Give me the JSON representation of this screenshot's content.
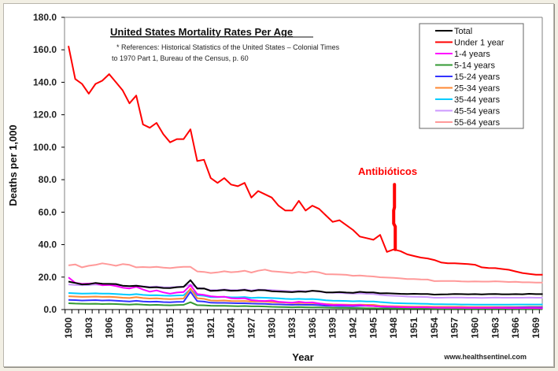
{
  "chart_data": {
    "type": "line",
    "title": "United States Mortality Rates Per Age",
    "reference_note": [
      "* References: Historical Statistics of the United States – Colonial Times",
      "to 1970 Part 1, Bureau of the Census, p. 60"
    ],
    "xlabel": "Year",
    "ylabel": "Deaths per 1,000",
    "ylim": [
      0,
      180
    ],
    "yticks": [
      "0.0",
      "20.0",
      "40.0",
      "60.0",
      "80.0",
      "100.0",
      "120.0",
      "140.0",
      "160.0",
      "180.0"
    ],
    "ytick_values": [
      0,
      20,
      40,
      60,
      80,
      100,
      120,
      140,
      160,
      180
    ],
    "xlim": [
      1900,
      1970
    ],
    "xtick_labels": [
      "1900",
      "1903",
      "1906",
      "1909",
      "1912",
      "1915",
      "1918",
      "1921",
      "1924",
      "1927",
      "1930",
      "1933",
      "1936",
      "1939",
      "1942",
      "1945",
      "1948",
      "1951",
      "1954",
      "1957",
      "1960",
      "1963",
      "1966",
      "1969"
    ],
    "grid": false,
    "legend_position": "top-right",
    "x": [
      1900,
      1901,
      1902,
      1903,
      1904,
      1905,
      1906,
      1907,
      1908,
      1909,
      1910,
      1911,
      1912,
      1913,
      1914,
      1915,
      1916,
      1917,
      1918,
      1919,
      1920,
      1921,
      1922,
      1923,
      1924,
      1925,
      1926,
      1927,
      1928,
      1929,
      1930,
      1931,
      1932,
      1933,
      1934,
      1935,
      1936,
      1937,
      1938,
      1939,
      1940,
      1941,
      1942,
      1943,
      1944,
      1945,
      1946,
      1947,
      1948,
      1949,
      1950,
      1951,
      1952,
      1953,
      1954,
      1955,
      1956,
      1957,
      1958,
      1959,
      1960,
      1961,
      1962,
      1963,
      1964,
      1965,
      1966,
      1967,
      1968,
      1969,
      1970
    ],
    "series": [
      {
        "name": "Total",
        "color": "#000000",
        "values": [
          17.2,
          16.4,
          15.5,
          15.6,
          16.4,
          15.9,
          15.8,
          15.7,
          14.7,
          14.4,
          14.7,
          14.1,
          13.6,
          13.8,
          13.3,
          13.2,
          13.8,
          14.0,
          18.1,
          12.9,
          13.0,
          11.5,
          11.7,
          12.1,
          11.6,
          11.7,
          12.1,
          11.3,
          12.0,
          11.9,
          11.3,
          11.1,
          10.9,
          10.7,
          11.1,
          10.9,
          11.6,
          11.3,
          10.6,
          10.6,
          10.8,
          10.5,
          10.3,
          10.9,
          10.6,
          10.6,
          10.0,
          10.1,
          9.9,
          9.7,
          9.6,
          9.7,
          9.6,
          9.6,
          9.2,
          9.3,
          9.4,
          9.6,
          9.5,
          9.4,
          9.5,
          9.3,
          9.5,
          9.6,
          9.4,
          9.4,
          9.5,
          9.4,
          9.7,
          9.5,
          9.5
        ]
      },
      {
        "name": "Under 1 year",
        "color": "#ff0000",
        "values": [
          162.4,
          142.0,
          139.0,
          133.0,
          139.0,
          141.0,
          145.0,
          140.0,
          135.0,
          127.0,
          131.8,
          114.0,
          112.0,
          115.0,
          108.0,
          103.0,
          105.0,
          105.0,
          111.0,
          91.5,
          92.3,
          81.0,
          78.0,
          81.0,
          77.0,
          76.0,
          78.0,
          69.0,
          73.0,
          71.0,
          69.0,
          64.0,
          61.0,
          61.0,
          67.0,
          61.0,
          64.0,
          62.0,
          58.0,
          54.0,
          55.0,
          52.0,
          49.0,
          45.0,
          44.0,
          43.0,
          46.0,
          35.5,
          37.0,
          36.0,
          34.0,
          33.0,
          32.0,
          31.5,
          30.5,
          29.0,
          28.5,
          28.5,
          28.3,
          28.0,
          27.6,
          26.0,
          25.6,
          25.5,
          25.0,
          24.5,
          23.5,
          22.5,
          22.0,
          21.5,
          21.5
        ]
      },
      {
        "name": "1-4 years",
        "color": "#ff00ff",
        "values": [
          19.8,
          16.5,
          15.8,
          16.0,
          16.2,
          15.0,
          15.2,
          14.5,
          13.5,
          13.0,
          14.0,
          12.3,
          11.0,
          11.8,
          10.6,
          9.8,
          10.5,
          10.8,
          15.0,
          9.5,
          9.0,
          8.2,
          7.8,
          7.9,
          7.0,
          6.8,
          7.0,
          5.8,
          5.5,
          5.3,
          5.6,
          4.8,
          4.5,
          4.2,
          4.8,
          4.3,
          4.4,
          3.8,
          3.2,
          2.8,
          2.9,
          2.7,
          2.6,
          2.8,
          2.4,
          2.2,
          1.9,
          1.8,
          1.7,
          1.5,
          1.4,
          1.4,
          1.4,
          1.3,
          1.2,
          1.1,
          1.1,
          1.1,
          1.1,
          1.0,
          1.1,
          1.0,
          1.0,
          1.0,
          1.0,
          0.9,
          0.9,
          0.9,
          0.9,
          0.9,
          0.8
        ]
      },
      {
        "name": "5-14 years",
        "color": "#339933",
        "values": [
          3.9,
          3.7,
          3.6,
          3.5,
          3.6,
          3.4,
          3.5,
          3.4,
          3.2,
          3.0,
          3.3,
          3.0,
          2.8,
          2.9,
          2.7,
          2.6,
          2.8,
          2.9,
          4.5,
          2.7,
          2.6,
          2.4,
          2.3,
          2.3,
          2.2,
          2.1,
          2.2,
          2.0,
          2.0,
          1.9,
          1.7,
          1.6,
          1.5,
          1.4,
          1.5,
          1.4,
          1.3,
          1.3,
          1.2,
          1.1,
          1.0,
          1.0,
          0.9,
          0.9,
          0.8,
          0.8,
          0.7,
          0.7,
          0.6,
          0.6,
          0.6,
          0.6,
          0.6,
          0.6,
          0.5,
          0.5,
          0.5,
          0.5,
          0.5,
          0.5,
          0.5,
          0.5,
          0.5,
          0.5,
          0.5,
          0.5,
          0.5,
          0.4,
          0.4,
          0.4,
          0.4
        ]
      },
      {
        "name": "15-24 years",
        "color": "#3333ff",
        "values": [
          5.9,
          5.8,
          5.6,
          5.7,
          5.8,
          5.6,
          5.7,
          5.5,
          5.2,
          5.0,
          5.4,
          5.0,
          4.8,
          4.9,
          4.6,
          4.5,
          4.7,
          4.8,
          11.0,
          5.2,
          4.9,
          4.2,
          4.1,
          4.1,
          4.0,
          3.9,
          3.9,
          3.7,
          3.6,
          3.5,
          3.3,
          3.2,
          3.0,
          2.9,
          3.0,
          2.9,
          2.9,
          2.7,
          2.4,
          2.3,
          2.2,
          2.2,
          2.1,
          2.3,
          2.3,
          2.2,
          1.8,
          1.6,
          1.5,
          1.3,
          1.3,
          1.2,
          1.2,
          1.2,
          1.1,
          1.1,
          1.1,
          1.1,
          1.1,
          1.1,
          1.1,
          1.1,
          1.1,
          1.2,
          1.2,
          1.2,
          1.2,
          1.3,
          1.3,
          1.3,
          1.3
        ]
      },
      {
        "name": "25-34 years",
        "color": "#ff8833",
        "values": [
          8.2,
          8.0,
          7.8,
          7.9,
          8.0,
          7.8,
          7.9,
          7.6,
          7.3,
          7.1,
          7.6,
          7.1,
          6.8,
          6.9,
          6.6,
          6.4,
          6.6,
          6.8,
          13.0,
          7.0,
          6.6,
          5.6,
          5.5,
          5.6,
          5.3,
          5.2,
          5.3,
          5.0,
          5.0,
          4.9,
          4.6,
          4.4,
          4.2,
          4.0,
          4.1,
          4.0,
          4.0,
          3.7,
          3.4,
          3.2,
          3.1,
          3.0,
          2.9,
          3.0,
          2.9,
          2.9,
          2.4,
          2.2,
          2.1,
          2.0,
          1.9,
          1.8,
          1.8,
          1.8,
          1.7,
          1.7,
          1.7,
          1.7,
          1.7,
          1.6,
          1.6,
          1.6,
          1.6,
          1.6,
          1.6,
          1.6,
          1.6,
          1.6,
          1.7,
          1.7,
          1.7
        ]
      },
      {
        "name": "35-44 years",
        "color": "#00ccff",
        "values": [
          10.2,
          10.0,
          9.8,
          9.9,
          10.0,
          9.8,
          9.8,
          9.6,
          9.3,
          9.1,
          9.5,
          9.0,
          8.8,
          8.9,
          8.6,
          8.5,
          8.7,
          8.8,
          12.5,
          8.8,
          8.5,
          7.6,
          7.6,
          7.8,
          7.5,
          7.5,
          7.7,
          7.2,
          7.4,
          7.3,
          7.1,
          6.9,
          6.6,
          6.4,
          6.6,
          6.4,
          6.5,
          6.2,
          5.7,
          5.5,
          5.4,
          5.3,
          5.1,
          5.2,
          5.0,
          5.0,
          4.6,
          4.3,
          4.0,
          3.9,
          3.8,
          3.7,
          3.6,
          3.5,
          3.3,
          3.3,
          3.2,
          3.2,
          3.1,
          3.1,
          3.0,
          3.0,
          3.0,
          3.0,
          3.0,
          3.0,
          3.1,
          3.1,
          3.1,
          3.1,
          3.1
        ]
      },
      {
        "name": "45-54 years",
        "color": "#cc99ff",
        "values": [
          15.5,
          15.2,
          15.0,
          15.1,
          15.4,
          15.0,
          15.2,
          15.0,
          14.6,
          14.3,
          14.8,
          14.3,
          14.0,
          14.2,
          13.8,
          13.7,
          14.0,
          14.1,
          15.5,
          13.5,
          13.0,
          12.0,
          12.0,
          12.4,
          12.0,
          12.0,
          12.4,
          11.8,
          12.3,
          12.2,
          12.0,
          11.8,
          11.5,
          11.2,
          11.5,
          11.3,
          11.5,
          11.1,
          10.5,
          10.4,
          10.3,
          10.0,
          9.8,
          10.0,
          9.7,
          9.6,
          9.0,
          8.7,
          8.5,
          8.3,
          8.0,
          7.9,
          7.8,
          7.7,
          7.3,
          7.3,
          7.4,
          7.4,
          7.4,
          7.3,
          7.3,
          7.2,
          7.3,
          7.4,
          7.3,
          7.3,
          7.3,
          7.3,
          7.4,
          7.3,
          7.3
        ]
      },
      {
        "name": "55-64 years",
        "color": "#ff9999",
        "values": [
          27.2,
          27.8,
          26.0,
          27.0,
          27.5,
          28.5,
          27.8,
          27.0,
          28.0,
          27.5,
          26.0,
          26.2,
          26.0,
          26.3,
          25.8,
          25.5,
          26.0,
          26.3,
          26.3,
          23.5,
          23.2,
          22.5,
          22.9,
          23.6,
          23.0,
          23.3,
          23.9,
          22.8,
          23.9,
          24.6,
          23.6,
          23.3,
          22.9,
          22.5,
          23.2,
          22.7,
          23.5,
          22.9,
          21.8,
          21.7,
          21.6,
          21.4,
          20.8,
          21.0,
          20.6,
          20.4,
          19.9,
          19.7,
          19.5,
          19.2,
          18.8,
          18.8,
          18.6,
          18.5,
          17.5,
          17.6,
          17.6,
          17.6,
          17.3,
          17.2,
          17.3,
          17.2,
          17.2,
          17.4,
          17.2,
          17.0,
          17.1,
          16.8,
          16.8,
          16.6,
          16.6
        ]
      }
    ],
    "annotations": [
      {
        "text": "Antibióticos",
        "x": 1948,
        "y": 80,
        "pointer_from": 77,
        "pointer_to": 37,
        "color": "#ff0000"
      }
    ],
    "credit": "www.healthsentinel.com"
  }
}
